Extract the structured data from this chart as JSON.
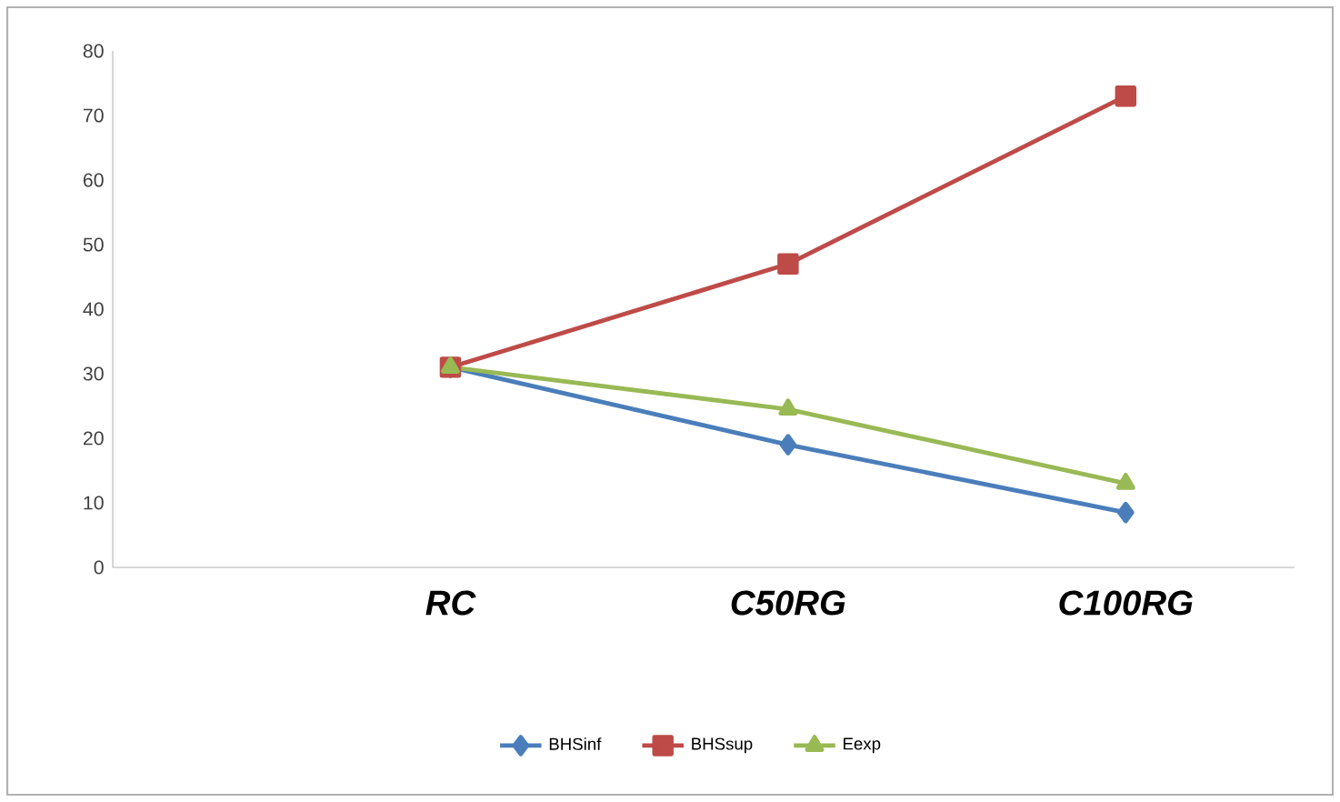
{
  "chart_data": {
    "type": "line",
    "categories": [
      null,
      "RC",
      "C50RG",
      "C100RG"
    ],
    "series": [
      {
        "name": "BHSinf",
        "color": "#4a7ebb",
        "marker": "diamond",
        "values": [
          null,
          31,
          19,
          8.5
        ]
      },
      {
        "name": "BHSsup",
        "color": "#be4b48",
        "marker": "square",
        "values": [
          null,
          31,
          47,
          73
        ]
      },
      {
        "name": "Eexp",
        "color": "#98b954",
        "marker": "triangle",
        "values": [
          null,
          31,
          24.5,
          13
        ]
      }
    ],
    "ylim": [
      0,
      80
    ],
    "yticks": [
      0,
      10,
      20,
      30,
      40,
      50,
      60,
      70,
      80
    ],
    "grid": false,
    "legend": "bottom",
    "line_style": "solid"
  }
}
